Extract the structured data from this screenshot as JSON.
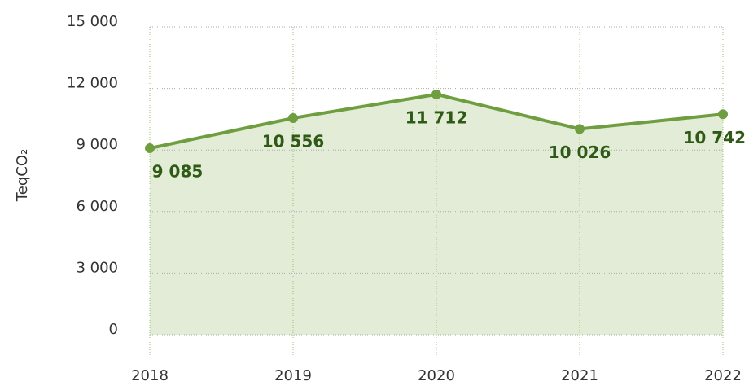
{
  "chart_data": {
    "type": "line",
    "y_label": "TeqCO₂",
    "categories": [
      "2018",
      "2019",
      "2020",
      "2021",
      "2022"
    ],
    "series": [
      {
        "name": "TeqCO₂",
        "color": "#6e9e3f",
        "fill": "#e2ecd6",
        "values": [
          9085,
          10556,
          11712,
          10026,
          10742
        ],
        "value_labels": [
          "9 085",
          "10 556",
          "11 712",
          "10 026",
          "10 742"
        ]
      }
    ],
    "ylim": [
      0,
      15000
    ],
    "yticks": [
      {
        "value": 0,
        "label": "0"
      },
      {
        "value": 3000,
        "label": "3 000"
      },
      {
        "value": 6000,
        "label": "6 000"
      },
      {
        "value": 9000,
        "label": "9 000"
      },
      {
        "value": 12000,
        "label": "12 000"
      },
      {
        "value": 15000,
        "label": "15 000"
      }
    ],
    "grid": true
  }
}
